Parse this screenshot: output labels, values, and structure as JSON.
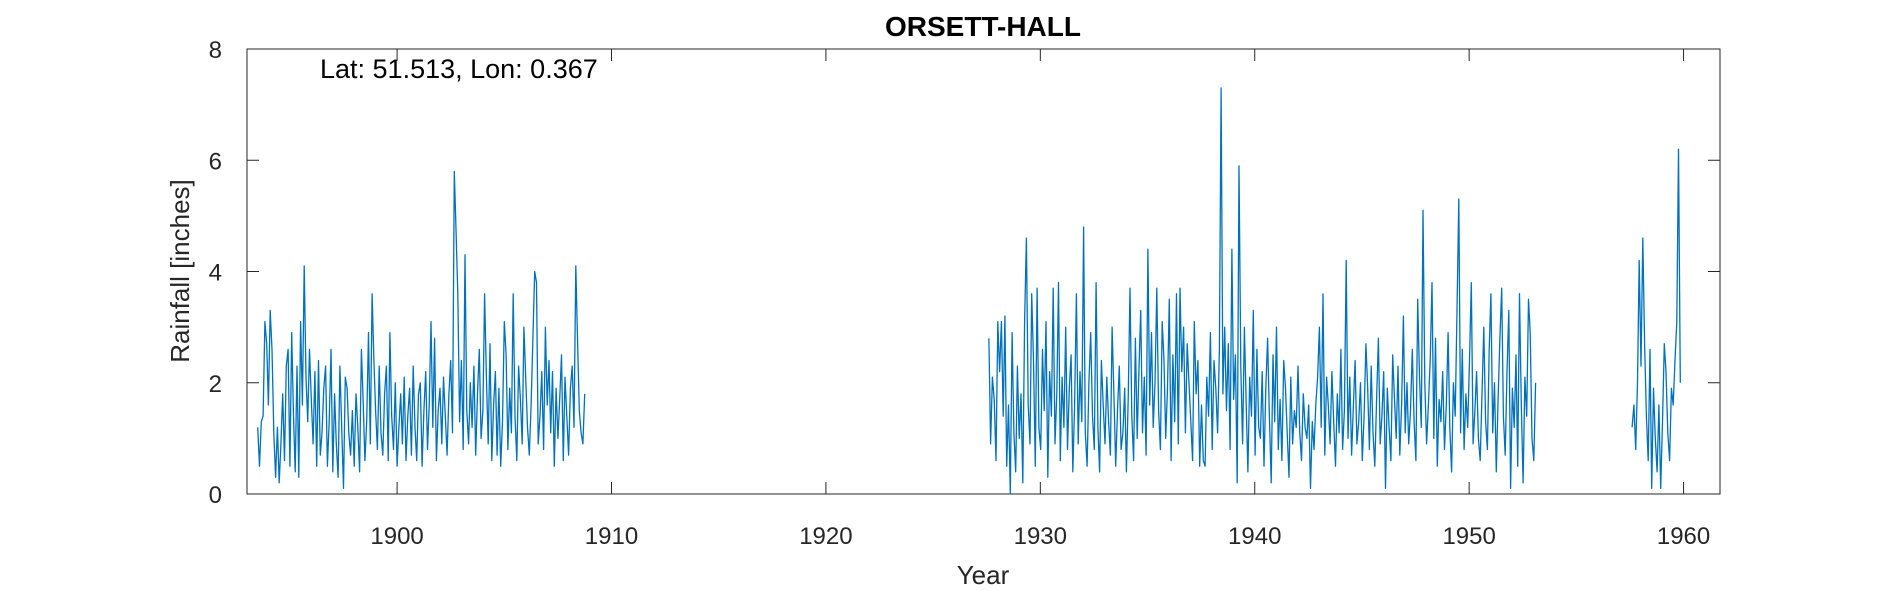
{
  "chart_data": {
    "type": "line",
    "title": "ORSETT-HALL",
    "annotation": "Lat: 51.513, Lon: 0.367",
    "xlabel": "Year",
    "ylabel": "Rainfall [inches]",
    "xlim": [
      1893,
      1961.7
    ],
    "ylim": [
      0,
      8
    ],
    "xticks": [
      1900,
      1910,
      1920,
      1930,
      1940,
      1950,
      1960
    ],
    "yticks": [
      0,
      2,
      4,
      6,
      8
    ],
    "grid": false,
    "box": true,
    "line_color": "#0072BD",
    "series": [
      {
        "segments": [
          {
            "start": 1893.5,
            "step": 0.0833333,
            "values": [
              1.2,
              0.5,
              1.3,
              1.4,
              3.1,
              2.7,
              1.6,
              3.3,
              2.6,
              1.1,
              0.3,
              1.2,
              0.2,
              0.9,
              1.8,
              0.6,
              2.3,
              2.6,
              0.5,
              2.9,
              1.4,
              0.4,
              2.3,
              0.3,
              3.1,
              1.6,
              4.1,
              2.1,
              1.3,
              2.6,
              1.7,
              0.9,
              2.2,
              0.5,
              2.4,
              0.7,
              1.1,
              1.9,
              2.3,
              0.5,
              1.3,
              2.6,
              0.4,
              1.8,
              0.9,
              0.3,
              2.3,
              1.2,
              0.1,
              2.1,
              1.9,
              1.1,
              0.7,
              1.5,
              0.5,
              1.8,
              1.2,
              0.4,
              2.6,
              1.7,
              0.6,
              1.3,
              2.9,
              0.9,
              3.6,
              2.4,
              1.5,
              0.8,
              2.3,
              1.1,
              0.7,
              1.8,
              2.3,
              0.6,
              2.9,
              1.4,
              0.8,
              2.0,
              0.5,
              1.2,
              1.8,
              0.9,
              2.1,
              0.6,
              1.4,
              1.9,
              0.7,
              2.3,
              1.2,
              0.6,
              1.8,
              2.0,
              0.5,
              1.5,
              2.2,
              0.8,
              1.6,
              3.1,
              1.2,
              2.8,
              0.6,
              1.5,
              1.9,
              0.9,
              2.1,
              1.4,
              0.7,
              1.8,
              2.4,
              1.1,
              5.8,
              4.7,
              3.6,
              1.3,
              2.4,
              0.8,
              4.3,
              1.5,
              0.9,
              2.0,
              1.2,
              2.3,
              0.7,
              1.8,
              2.6,
              1.0,
              1.5,
              3.6,
              2.1,
              0.9,
              2.7,
              0.6,
              1.6,
              2.2,
              0.7,
              1.9,
              0.5,
              1.3,
              3.1,
              2.5,
              0.8,
              1.9,
              1.1,
              3.6,
              1.4,
              0.6,
              2.3,
              1.7,
              0.9,
              3.0,
              2.1,
              1.2,
              0.7,
              1.6,
              2.8,
              4.0,
              3.8,
              0.9,
              1.4,
              2.2,
              0.8,
              3.0,
              1.6,
              2.4,
              1.1,
              2.2,
              0.5,
              1.9,
              1.0,
              1.7,
              2.5,
              0.6,
              2.1,
              1.4,
              0.7,
              1.9,
              2.3,
              1.2,
              4.1,
              2.8,
              1.5,
              1.1,
              0.9,
              1.8
            ]
          },
          {
            "start": 1927.6,
            "step": 0.0833333,
            "values": [
              2.8,
              0.9,
              2.1,
              1.7,
              0.6,
              3.1,
              2.2,
              3.1,
              1.4,
              3.2,
              0.5,
              1.6,
              0.0,
              2.9,
              1.1,
              0.4,
              2.3,
              1.0,
              1.8,
              0.2,
              3.1,
              4.6,
              1.6,
              0.9,
              3.6,
              2.4,
              0.5,
              3.7,
              1.2,
              0.8,
              2.6,
              1.5,
              3.1,
              0.3,
              2.2,
              1.4,
              3.7,
              0.9,
              1.8,
              3.8,
              0.6,
              2.1,
              1.2,
              3.0,
              0.8,
              1.9,
              2.5,
              0.4,
              1.6,
              3.6,
              0.9,
              2.2,
              1.3,
              4.8,
              1.1,
              0.5,
              2.0,
              2.9,
              1.4,
              0.8,
              3.8,
              1.2,
              0.4,
              2.4,
              1.6,
              0.9,
              2.1,
              1.3,
              0.7,
              3.0,
              1.8,
              0.5,
              1.5,
              2.3,
              0.8,
              1.1,
              1.9,
              0.4,
              1.7,
              3.7,
              1.4,
              0.6,
              2.8,
              1.0,
              2.2,
              3.3,
              1.1,
              2.1,
              0.7,
              4.4,
              1.6,
              2.9,
              1.2,
              2.0,
              3.7,
              1.5,
              0.8,
              3.1,
              2.4,
              1.0,
              1.9,
              3.5,
              0.6,
              2.5,
              1.3,
              3.6,
              0.9,
              3.7,
              2.2,
              3.0,
              1.1,
              2.7,
              2.0,
              1.3,
              0.6,
              3.1,
              1.8,
              2.4,
              0.5,
              1.6,
              0.6,
              0.5,
              2.1,
              1.4,
              2.9,
              0.8,
              2.4,
              1.9,
              1.1,
              2.6,
              7.3,
              1.8,
              3.0,
              1.5,
              2.7,
              0.8,
              4.4,
              1.7,
              2.5,
              0.2,
              5.9,
              2.3,
              0.9,
              3.0,
              1.6,
              0.4,
              2.1,
              1.4,
              3.3,
              0.7,
              2.6,
              1.2,
              1.0,
              2.2,
              0.5,
              1.9,
              2.8,
              1.4,
              0.2,
              2.5,
              1.3,
              3.0,
              0.8,
              1.7,
              0.6,
              2.4,
              1.9,
              1.1,
              0.3,
              2.1,
              0.9,
              1.5,
              1.2,
              2.3,
              1.1,
              0.6,
              1.8,
              1.2,
              1.0,
              1.6,
              0.1,
              1.3,
              0.8,
              1.6,
              2.1,
              3.0,
              1.2,
              3.6,
              0.7,
              2.1,
              1.6,
              0.9,
              2.2,
              1.3,
              0.5,
              1.8,
              1.1,
              2.6,
              0.8,
              1.5,
              4.2,
              1.0,
              2.1,
              0.7,
              1.6,
              2.4,
              0.9,
              1.3,
              2.0,
              0.6,
              1.4,
              2.7,
              1.9,
              0.8,
              2.3,
              1.1,
              0.5,
              1.7,
              2.8,
              0.9,
              1.4,
              2.2,
              0.1,
              1.9,
              1.2,
              0.6,
              2.5,
              1.7,
              1.0,
              2.3,
              0.7,
              1.6,
              3.2,
              1.1,
              2.0,
              0.9,
              1.5,
              2.6,
              1.3,
              0.6,
              3.5,
              2.1,
              1.2,
              5.1,
              2.0,
              0.9,
              1.6,
              2.4,
              3.8,
              1.0,
              2.8,
              0.5,
              1.7,
              1.3,
              2.2,
              0.8,
              1.6,
              2.9,
              1.2,
              0.4,
              2.0,
              1.4,
              3.3,
              5.3,
              1.1,
              2.6,
              0.8,
              1.8,
              1.2,
              2.4,
              3.8,
              0.9,
              1.5,
              2.2,
              1.0,
              0.6,
              1.8,
              3.0,
              1.3,
              0.8,
              2.6,
              3.6,
              1.1,
              2.0,
              0.4,
              1.7,
              2.8,
              3.7,
              1.4,
              0.7,
              2.2,
              3.3,
              0.1,
              1.9,
              1.2,
              2.5,
              0.5,
              3.6,
              1.6,
              0.2,
              2.1,
              1.4,
              3.5,
              2.9,
              1.0,
              0.6,
              2.0
            ]
          },
          {
            "start": 1957.6,
            "step": 0.0833333,
            "values": [
              1.2,
              1.6,
              0.8,
              2.0,
              4.2,
              2.3,
              4.6,
              2.7,
              1.4,
              0.6,
              2.6,
              0.1,
              1.9,
              1.0,
              0.4,
              1.6,
              0.1,
              1.3,
              2.7,
              2.2,
              1.1,
              0.6,
              1.9,
              1.6,
              2.4,
              3.1,
              6.2,
              2.0
            ]
          }
        ]
      }
    ]
  }
}
